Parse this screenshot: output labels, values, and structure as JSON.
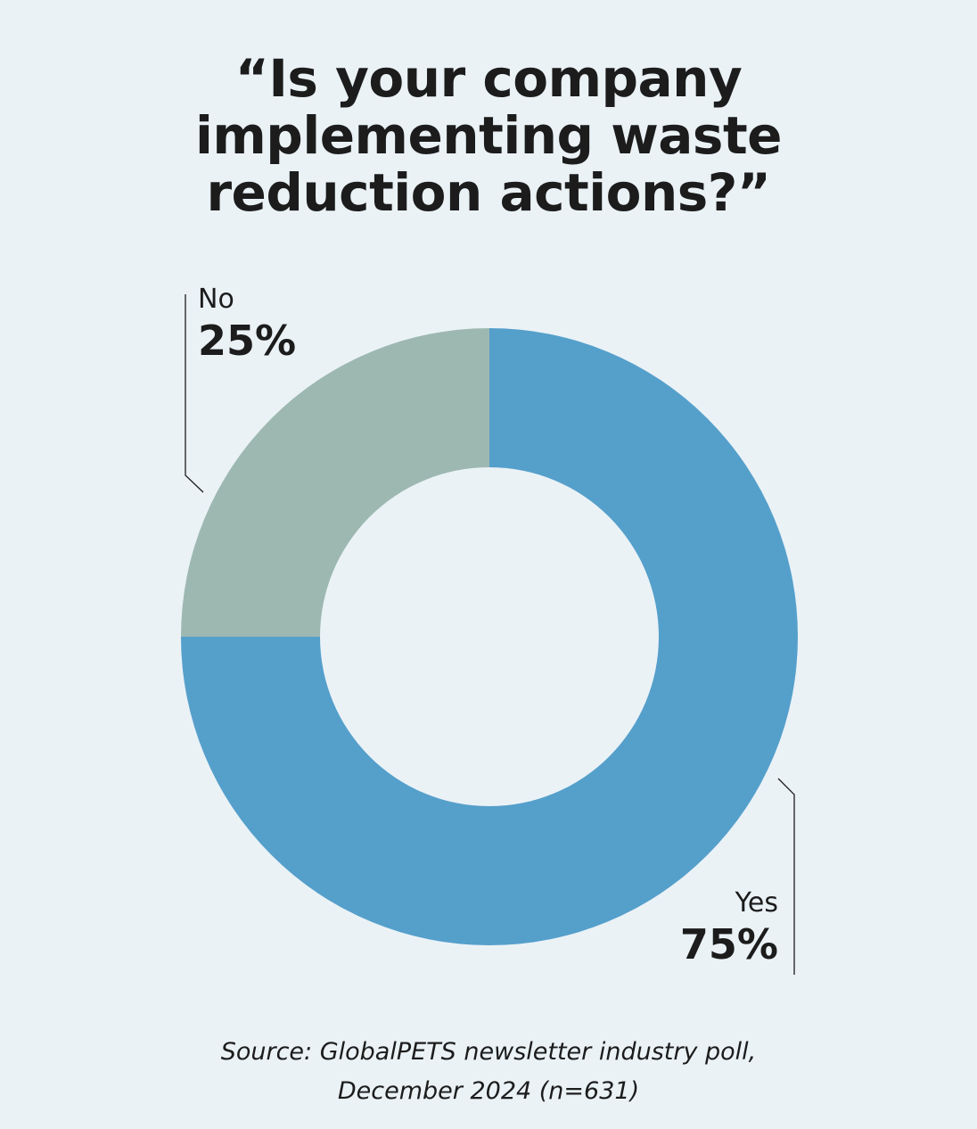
{
  "chart_data": {
    "type": "donut",
    "title": "“Is your company implementing waste reduction actions?”",
    "categories": [
      "Yes",
      "No"
    ],
    "values": [
      75,
      25
    ],
    "value_labels": [
      "75%",
      "25%"
    ],
    "colors": [
      "#559fcb",
      "#9db8b1"
    ],
    "source": "Source: GlobalPETS newsletter industry poll, December 2024 (n=631)"
  }
}
